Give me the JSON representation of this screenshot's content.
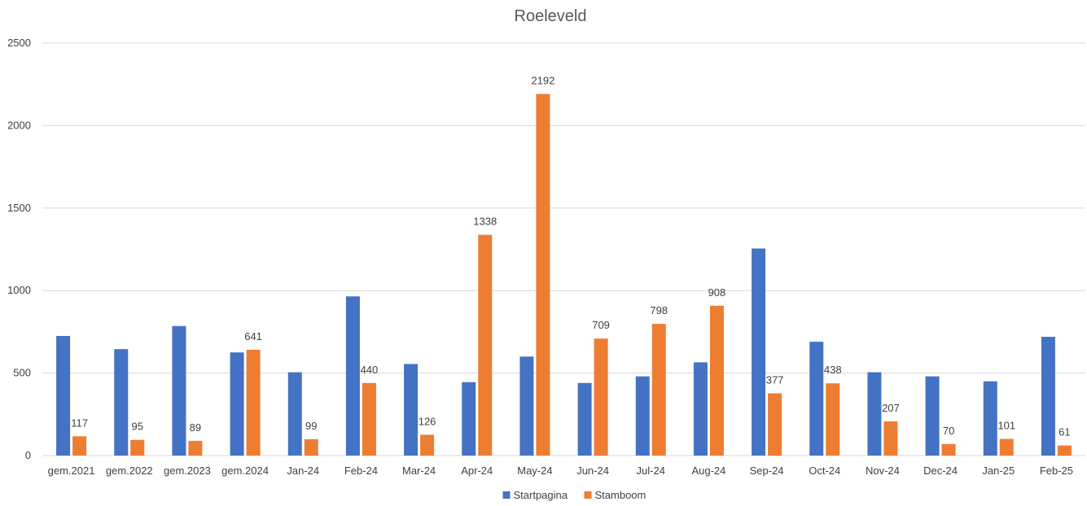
{
  "chart_data": {
    "type": "bar",
    "title": "Roeleveld",
    "xlabel": "",
    "ylabel": "",
    "ylim": [
      0,
      2500
    ],
    "yticks": [
      0,
      500,
      1000,
      1500,
      2000,
      2500
    ],
    "grid": true,
    "legend_position": "bottom",
    "categories": [
      "gem.2021",
      "gem.2022",
      "gem.2023",
      "gem.2024",
      "Jan-24",
      "Feb-24",
      "Mar-24",
      "Apr-24",
      "May-24",
      "Jun-24",
      "Jul-24",
      "Aug-24",
      "Sep-24",
      "Oct-24",
      "Nov-24",
      "Dec-24",
      "Jan-25",
      "Feb-25"
    ],
    "series": [
      {
        "name": "Startpagina",
        "color": "#4472c4",
        "show_labels": false,
        "values": [
          725,
          645,
          785,
          625,
          505,
          965,
          555,
          445,
          600,
          440,
          480,
          565,
          1255,
          690,
          505,
          480,
          450,
          720
        ]
      },
      {
        "name": "Stamboom",
        "color": "#ed7d31",
        "show_labels": true,
        "values": [
          117,
          95,
          89,
          641,
          99,
          440,
          126,
          1338,
          2192,
          709,
          798,
          908,
          377,
          438,
          207,
          70,
          101,
          61
        ]
      }
    ]
  }
}
